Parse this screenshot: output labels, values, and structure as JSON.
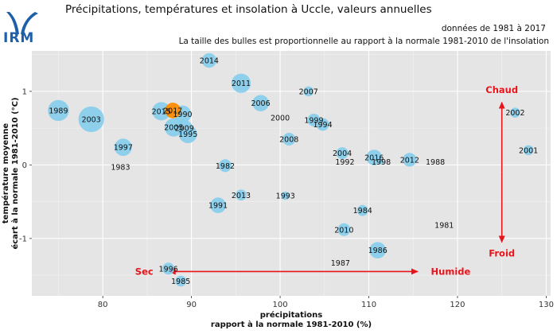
{
  "header": {
    "logo_text": "IRM",
    "title": "Précipitations, températures et insolation à Uccle, valeurs annuelles",
    "period": "données de 1981 à 2017",
    "subtitle": "La taille des bulles est proportionnelle au rapport à la normale 1981-2010 de l'insolation"
  },
  "colors": {
    "panel": "#e5e5e5",
    "grid_major": "#ffffff",
    "grid_minor": "#f2f2f2",
    "bubble": "#87ceeb",
    "highlight": "#ff8c00",
    "annotation": "#e8141b",
    "logo": "#1d5fa8"
  },
  "chart_data": {
    "type": "scatter",
    "xlabel_lines": [
      "précipitations",
      "rapport à la normale 1981-2010 (%)"
    ],
    "ylabel_lines": [
      "température moyenne",
      "écart à la normale 1981-2010 (°C)"
    ],
    "xlim": [
      72,
      130.5
    ],
    "ylim": [
      -1.78,
      1.55
    ],
    "x_ticks": [
      80,
      90,
      100,
      110,
      120,
      130
    ],
    "y_ticks": [
      -1,
      0,
      1
    ],
    "grid": true,
    "points": [
      {
        "year": "1981",
        "x": 118.5,
        "y": -0.82,
        "s": 0
      },
      {
        "year": "1982",
        "x": 93.8,
        "y": -0.01,
        "s": 0.7
      },
      {
        "year": "1983",
        "x": 82.0,
        "y": -0.03,
        "s": 0
      },
      {
        "year": "1984",
        "x": 109.3,
        "y": -0.62,
        "s": 0.6
      },
      {
        "year": "1985",
        "x": 88.8,
        "y": -1.58,
        "s": 0.6
      },
      {
        "year": "1986",
        "x": 111.0,
        "y": -1.16,
        "s": 0.9
      },
      {
        "year": "1987",
        "x": 106.8,
        "y": -1.33,
        "s": 0
      },
      {
        "year": "1988",
        "x": 117.5,
        "y": 0.04,
        "s": 0
      },
      {
        "year": "1989",
        "x": 75.0,
        "y": 0.74,
        "s": 1.15
      },
      {
        "year": "1990",
        "x": 89.0,
        "y": 0.69,
        "s": 0.95
      },
      {
        "year": "1991",
        "x": 93.0,
        "y": -0.55,
        "s": 0.85
      },
      {
        "year": "1992",
        "x": 107.3,
        "y": 0.04,
        "s": 0
      },
      {
        "year": "1993",
        "x": 100.6,
        "y": -0.42,
        "s": 0.45
      },
      {
        "year": "1994",
        "x": 104.8,
        "y": 0.55,
        "s": 0.7
      },
      {
        "year": "1995",
        "x": 89.6,
        "y": 0.42,
        "s": 1.0
      },
      {
        "year": "1996",
        "x": 87.4,
        "y": -1.41,
        "s": 0.65
      },
      {
        "year": "1997",
        "x": 82.3,
        "y": 0.24,
        "s": 0.95
      },
      {
        "year": "1998",
        "x": 111.4,
        "y": 0.04,
        "s": 0.3
      },
      {
        "year": "1999",
        "x": 103.8,
        "y": 0.61,
        "s": 0.7
      },
      {
        "year": "2000",
        "x": 100.0,
        "y": 0.64,
        "s": 0
      },
      {
        "year": "2001",
        "x": 128.0,
        "y": 0.2,
        "s": 0.55
      },
      {
        "year": "2002",
        "x": 126.5,
        "y": 0.71,
        "s": 0.55
      },
      {
        "year": "2003",
        "x": 78.7,
        "y": 0.62,
        "s": 1.4
      },
      {
        "year": "2004",
        "x": 107.0,
        "y": 0.16,
        "s": 0.65
      },
      {
        "year": "2005",
        "x": 88.0,
        "y": 0.51,
        "s": 1.0
      },
      {
        "year": "2006",
        "x": 97.8,
        "y": 0.84,
        "s": 0.9
      },
      {
        "year": "2007",
        "x": 103.2,
        "y": 1.0,
        "s": 0.55
      },
      {
        "year": "2008",
        "x": 101.0,
        "y": 0.35,
        "s": 0.7
      },
      {
        "year": "2009",
        "x": 89.2,
        "y": 0.5,
        "s": 0.9
      },
      {
        "year": "2010",
        "x": 107.2,
        "y": -0.88,
        "s": 0.7
      },
      {
        "year": "2011",
        "x": 95.6,
        "y": 1.11,
        "s": 1.05
      },
      {
        "year": "2012",
        "x": 114.6,
        "y": 0.07,
        "s": 0.75
      },
      {
        "year": "2013",
        "x": 95.6,
        "y": -0.41,
        "s": 0.6
      },
      {
        "year": "2014",
        "x": 92.0,
        "y": 1.42,
        "s": 0.8
      },
      {
        "year": "2015",
        "x": 86.6,
        "y": 0.73,
        "s": 1.0
      },
      {
        "year": "2016",
        "x": 110.6,
        "y": 0.1,
        "s": 0.85
      },
      {
        "year": "2017",
        "x": 87.9,
        "y": 0.74,
        "s": 0.85,
        "highlight": true
      }
    ],
    "annotations": {
      "sec": "Sec",
      "humide": "Humide",
      "chaud": "Chaud",
      "froid": "Froid"
    }
  }
}
